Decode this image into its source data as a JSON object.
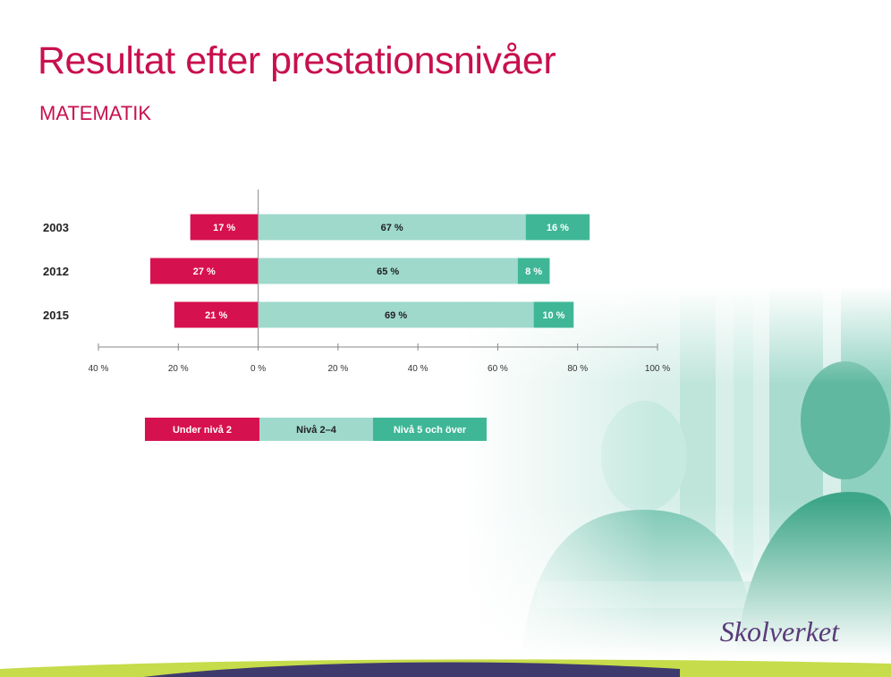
{
  "slide": {
    "title": "Resultat efter prestationsnivåer",
    "subtitle": "MATEMATIK",
    "logo": "Skolverket"
  },
  "colors": {
    "title": "#c8104f",
    "under": "#d6114f",
    "mid": "#9fd9cc",
    "top": "#3fb797",
    "logo": "#5a3a78"
  },
  "chart_data": {
    "type": "bar",
    "orientation": "horizontal-diverging",
    "categories": [
      "2003",
      "2012",
      "2015"
    ],
    "series": [
      {
        "name": "Under nivå 2",
        "values": [
          17,
          27,
          21
        ],
        "labels": [
          "17 %",
          "27 %",
          "21 %"
        ],
        "color": "#d6114f",
        "direction": "negative"
      },
      {
        "name": "Nivå 2–4",
        "values": [
          67,
          65,
          69
        ],
        "labels": [
          "67 %",
          "65 %",
          "69 %"
        ],
        "color": "#9fd9cc",
        "direction": "positive"
      },
      {
        "name": "Nivå 5 och över",
        "values": [
          16,
          8,
          10
        ],
        "labels": [
          "16 %",
          "8 %",
          "10 %"
        ],
        "color": "#3fb797",
        "direction": "positive"
      }
    ],
    "xlim": [
      -40,
      100
    ],
    "xticks": [
      -40,
      -20,
      0,
      20,
      40,
      60,
      80,
      100
    ],
    "xtick_labels": [
      "40 %",
      "20 %",
      "0 %",
      "20 %",
      "40 %",
      "60 %",
      "80 %",
      "100 %"
    ],
    "legend": {
      "placement": "bottom",
      "items": [
        "Under nivå 2",
        "Nivå 2–4",
        "Nivå 5 och över"
      ]
    },
    "grid": false
  }
}
